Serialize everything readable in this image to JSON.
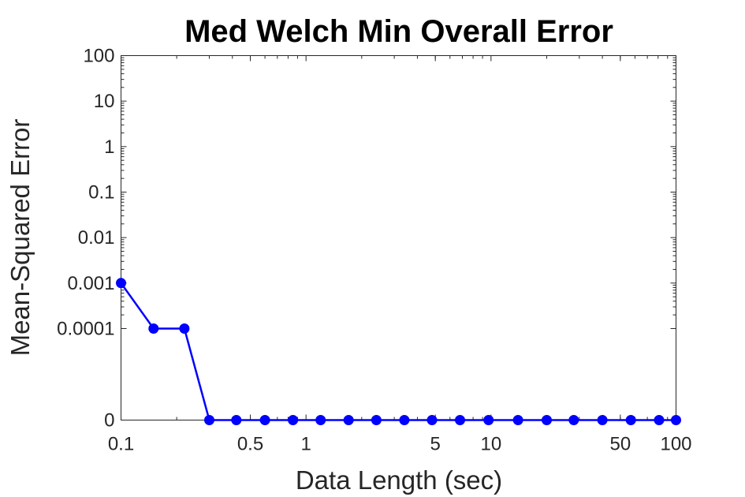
{
  "chart_data": {
    "type": "line",
    "title": "Med Welch Min Overall Error",
    "xlabel": "Data Length (sec)",
    "ylabel": "Mean-Squared Error",
    "x_scale": "log",
    "y_scale": "custom: linear 0 to 0.0001, log 0.0001 to 100",
    "xlim": [
      0.1,
      100
    ],
    "ylim": [
      0,
      100
    ],
    "grid": false,
    "legend": "none",
    "x_ticks": [
      {
        "value": 0.1,
        "label": "0.1"
      },
      {
        "value": 0.5,
        "label": "0.5"
      },
      {
        "value": 1,
        "label": "1"
      },
      {
        "value": 5,
        "label": "5"
      },
      {
        "value": 10,
        "label": "10"
      },
      {
        "value": 50,
        "label": "50"
      },
      {
        "value": 100,
        "label": "100"
      }
    ],
    "y_ticks": [
      {
        "value": 0,
        "label": "0"
      },
      {
        "value": 0.0001,
        "label": "0.0001"
      },
      {
        "value": 0.001,
        "label": "0.001"
      },
      {
        "value": 0.01,
        "label": "0.01"
      },
      {
        "value": 0.1,
        "label": "0.1"
      },
      {
        "value": 1,
        "label": "1"
      },
      {
        "value": 10,
        "label": "10"
      },
      {
        "value": 100,
        "label": "100"
      }
    ],
    "series": [
      {
        "color": "#0000ff",
        "marker": "circle",
        "x": [
          0.1,
          0.15,
          0.22,
          0.3,
          0.42,
          0.6,
          0.85,
          1.2,
          1.7,
          2.4,
          3.4,
          4.8,
          6.8,
          9.7,
          14,
          20,
          28,
          40,
          57,
          81,
          100
        ],
        "y": [
          0.001,
          0.0001,
          0.0001,
          0,
          0,
          0,
          0,
          0,
          0,
          0,
          0,
          0,
          0,
          0,
          0,
          0,
          0,
          0,
          0,
          0,
          0
        ]
      }
    ]
  }
}
